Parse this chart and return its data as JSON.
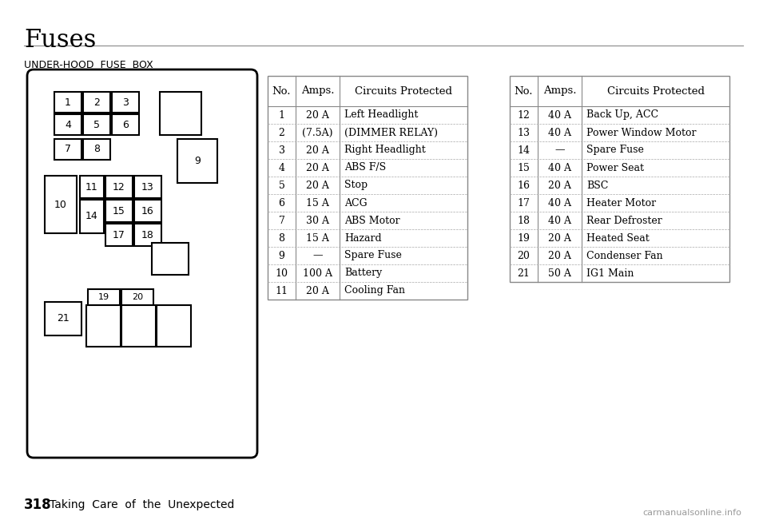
{
  "title": "Fuses",
  "subtitle": "UNDER-HOOD  FUSE  BOX",
  "page_number": "318",
  "page_text": "Taking  Care  of  the  Unexpected",
  "table1_headers": [
    "No.",
    "Amps.",
    "Circuits Protected"
  ],
  "table1_rows": [
    [
      "1",
      "20 A",
      "Left Headlight"
    ],
    [
      "2",
      "(7.5A)",
      "(DIMMER RELAY)"
    ],
    [
      "3",
      "20 A",
      "Right Headlight"
    ],
    [
      "4",
      "20 A",
      "ABS F/S"
    ],
    [
      "5",
      "20 A",
      "Stop"
    ],
    [
      "6",
      "15 A",
      "ACG"
    ],
    [
      "7",
      "30 A",
      "ABS Motor"
    ],
    [
      "8",
      "15 A",
      "Hazard"
    ],
    [
      "9",
      "—",
      "Spare Fuse"
    ],
    [
      "10",
      "100 A",
      "Battery"
    ],
    [
      "11",
      "20 A",
      "Cooling Fan"
    ]
  ],
  "table2_headers": [
    "No.",
    "Amps.",
    "Circuits Protected"
  ],
  "table2_rows": [
    [
      "12",
      "40 A",
      "Back Up, ACC"
    ],
    [
      "13",
      "40 A",
      "Power Window Motor"
    ],
    [
      "14",
      "—",
      "Spare Fuse"
    ],
    [
      "15",
      "40 A",
      "Power Seat"
    ],
    [
      "16",
      "20 A",
      "BSC"
    ],
    [
      "17",
      "40 A",
      "Heater Motor"
    ],
    [
      "18",
      "40 A",
      "Rear Defroster"
    ],
    [
      "19",
      "20 A",
      "Heated Seat"
    ],
    [
      "20",
      "20 A",
      "Condenser Fan"
    ],
    [
      "21",
      "50 A",
      "IG1 Main"
    ]
  ],
  "bg_color": "#ffffff",
  "text_color": "#000000",
  "line_color": "#555555",
  "box_color": "#000000",
  "watermark": "carmanualsonline.info"
}
